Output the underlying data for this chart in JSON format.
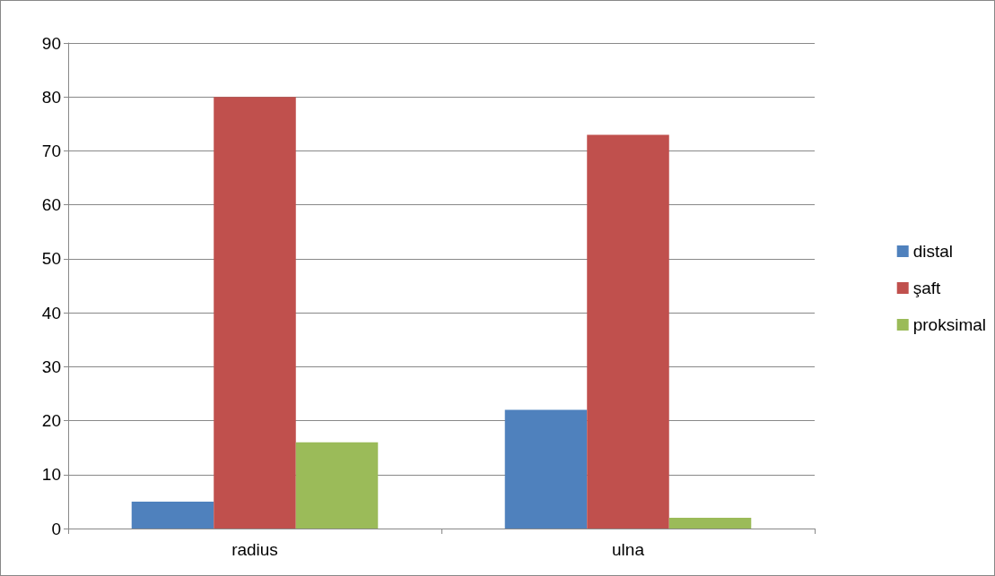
{
  "chart_data": {
    "type": "bar",
    "categories": [
      "radius",
      "ulna"
    ],
    "series": [
      {
        "name": "distal",
        "color": "#4f81bd",
        "values": [
          5,
          22
        ]
      },
      {
        "name": "şaft",
        "color": "#c0504d",
        "values": [
          80,
          73
        ]
      },
      {
        "name": "proksimal",
        "color": "#9bbb59",
        "values": [
          16,
          2
        ]
      }
    ],
    "ylim": [
      0,
      90
    ],
    "yticks": [
      0,
      10,
      20,
      30,
      40,
      50,
      60,
      70,
      80,
      90
    ],
    "grid": "y",
    "legend": "right"
  }
}
